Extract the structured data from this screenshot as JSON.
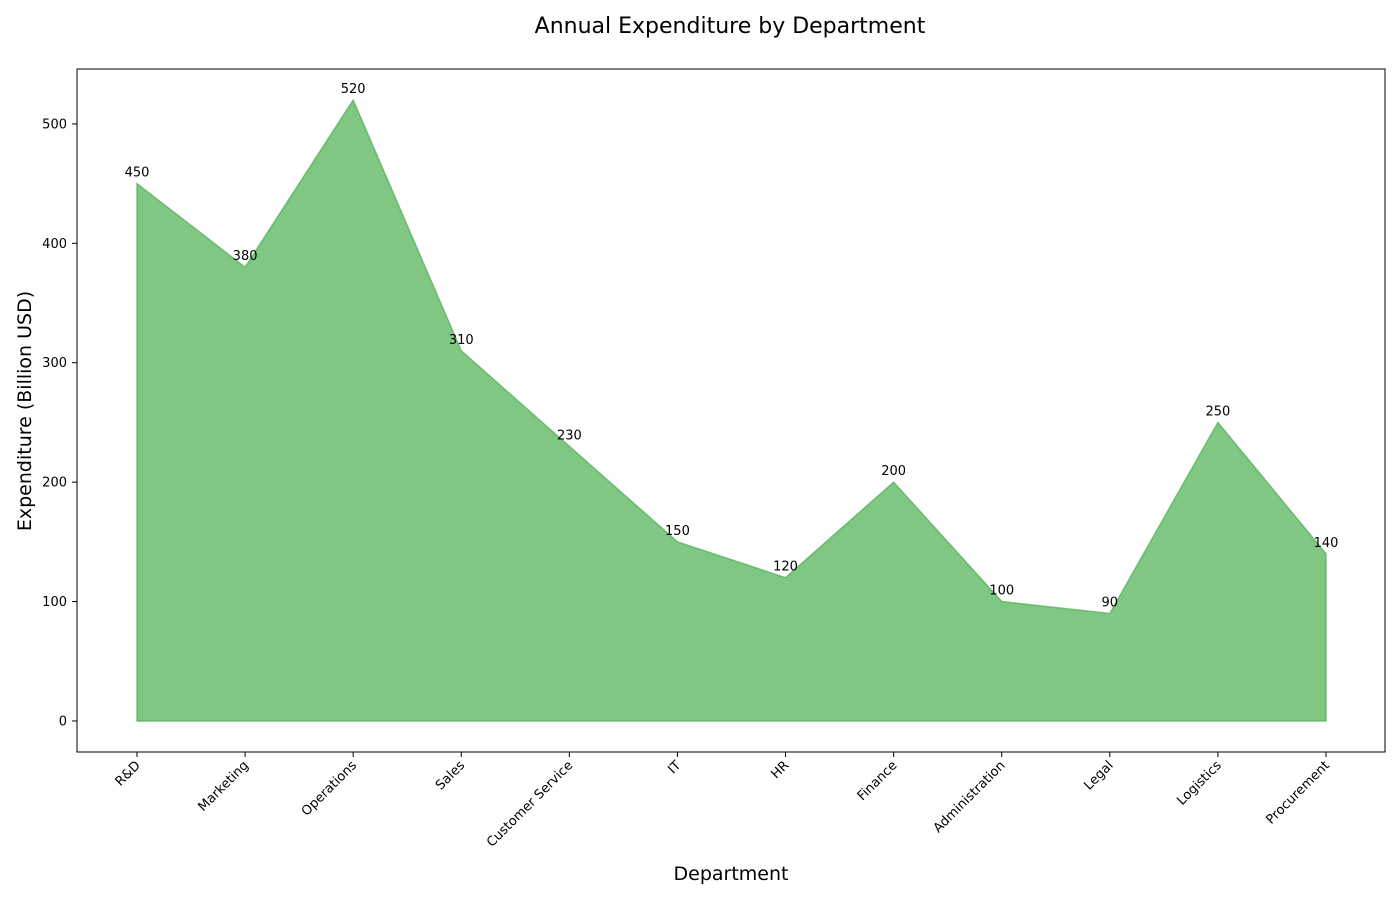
{
  "chart_data": {
    "type": "area",
    "title": "Annual Expenditure by Department",
    "xlabel": "Department",
    "ylabel": "Expenditure (Billion USD)",
    "categories": [
      "R&D",
      "Marketing",
      "Operations",
      "Sales",
      "Customer Service",
      "IT",
      "HR",
      "Finance",
      "Administration",
      "Legal",
      "Logistics",
      "Procurement"
    ],
    "values": [
      450,
      380,
      520,
      310,
      230,
      150,
      120,
      200,
      100,
      90,
      250,
      140
    ],
    "yticks": [
      0,
      100,
      200,
      300,
      400,
      500
    ],
    "ylim": [
      -26,
      546
    ],
    "grid": false,
    "legend": "none",
    "fill_color": "#4caf50",
    "fill_opacity": 0.7
  }
}
